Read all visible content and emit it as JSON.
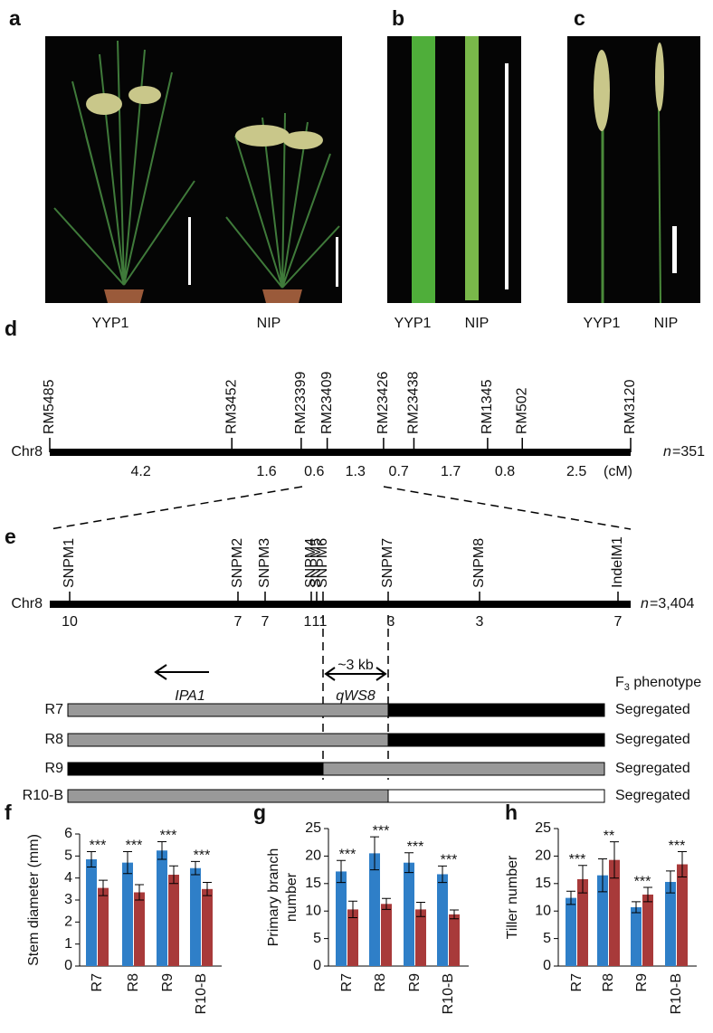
{
  "panel_labels": [
    "a",
    "b",
    "c",
    "d",
    "e",
    "f",
    "g",
    "h"
  ],
  "photos": [
    {
      "labels": [
        "YYP1",
        "NIP"
      ]
    },
    {
      "labels": [
        "YYP1",
        "NIP"
      ]
    },
    {
      "labels": [
        "YYP1",
        "NIP"
      ]
    }
  ],
  "map_d": {
    "chromosome": "Chr8",
    "markers": [
      "RM5485",
      "RM3452",
      "RM23399",
      "RM23409",
      "RM23426",
      "RM23438",
      "RM1345",
      "RM502",
      "RM3120"
    ],
    "distances_cM": [
      4.2,
      1.6,
      0.6,
      1.3,
      0.7,
      1.7,
      0.8,
      2.5
    ],
    "unit": "(cM)",
    "n_symbol": "n",
    "n_text": "=351"
  },
  "map_e": {
    "chromosome": "Chr8",
    "markers": [
      "SNPM1",
      "SNPM2",
      "SNPM3",
      "SNPM4",
      "SNPM5",
      "SNPM6",
      "SNPM7",
      "SNPM8",
      "IndelM1"
    ],
    "recombinants": [
      10,
      7,
      7,
      1,
      1,
      1,
      3,
      3,
      7
    ],
    "n_symbol": "n",
    "n_text": "=3,404",
    "gene": "IPA1",
    "region": "~3 kb",
    "qtl": "qWS8",
    "phenotype_header": {
      "base": "F",
      "sub": "3",
      "rest": " phenotype"
    },
    "lines": [
      {
        "name": "R7",
        "phenotype": "Segregated"
      },
      {
        "name": "R8",
        "phenotype": "Segregated"
      },
      {
        "name": "R9",
        "phenotype": "Segregated"
      },
      {
        "name": "R10-B",
        "phenotype": "Segregated"
      }
    ]
  },
  "chart_data": [
    {
      "type": "bar",
      "ylabel": [
        "Stem diameter (mm)"
      ],
      "categories": [
        "R7",
        "R8",
        "R9",
        "R10-B"
      ],
      "series": [
        {
          "color": "#2f7fc8",
          "values": [
            4.85,
            4.7,
            5.25,
            4.45
          ],
          "errors": [
            0.35,
            0.5,
            0.4,
            0.3
          ]
        },
        {
          "color": "#a83a3a",
          "values": [
            3.55,
            3.35,
            4.15,
            3.5
          ],
          "errors": [
            0.35,
            0.35,
            0.4,
            0.3
          ]
        }
      ],
      "annotations": [
        "***",
        "***",
        "***",
        "***"
      ],
      "ylim": [
        0,
        6
      ],
      "yticks": [
        0,
        1,
        2,
        3,
        4,
        5,
        6
      ]
    },
    {
      "type": "bar",
      "ylabel": [
        "Primary branch",
        "number"
      ],
      "categories": [
        "R7",
        "R8",
        "R9",
        "R10-B"
      ],
      "series": [
        {
          "color": "#2f7fc8",
          "values": [
            17.2,
            20.5,
            18.8,
            16.7
          ],
          "errors": [
            2,
            3,
            1.8,
            1.5
          ]
        },
        {
          "color": "#a83a3a",
          "values": [
            10.3,
            11.3,
            10.3,
            9.4
          ],
          "errors": [
            1.5,
            1,
            1.3,
            0.8
          ]
        }
      ],
      "annotations": [
        "***",
        "***",
        "***",
        "***"
      ],
      "ylim": [
        0,
        25
      ],
      "yticks": [
        0,
        5,
        10,
        15,
        20,
        25
      ]
    },
    {
      "type": "bar",
      "ylabel": [
        "Tiller number"
      ],
      "categories": [
        "R7",
        "R8",
        "R9",
        "R10-B"
      ],
      "series": [
        {
          "color": "#2f7fc8",
          "values": [
            12.4,
            16.5,
            10.7,
            15.3
          ],
          "errors": [
            1.2,
            3,
            1,
            2
          ]
        },
        {
          "color": "#a83a3a",
          "values": [
            15.8,
            19.3,
            13,
            18.5
          ],
          "errors": [
            2.5,
            3.3,
            1.3,
            2.3
          ]
        }
      ],
      "annotations": [
        "***",
        "**",
        "***",
        "***"
      ],
      "ylim": [
        0,
        25
      ],
      "yticks": [
        0,
        5,
        10,
        15,
        20,
        25
      ]
    }
  ]
}
